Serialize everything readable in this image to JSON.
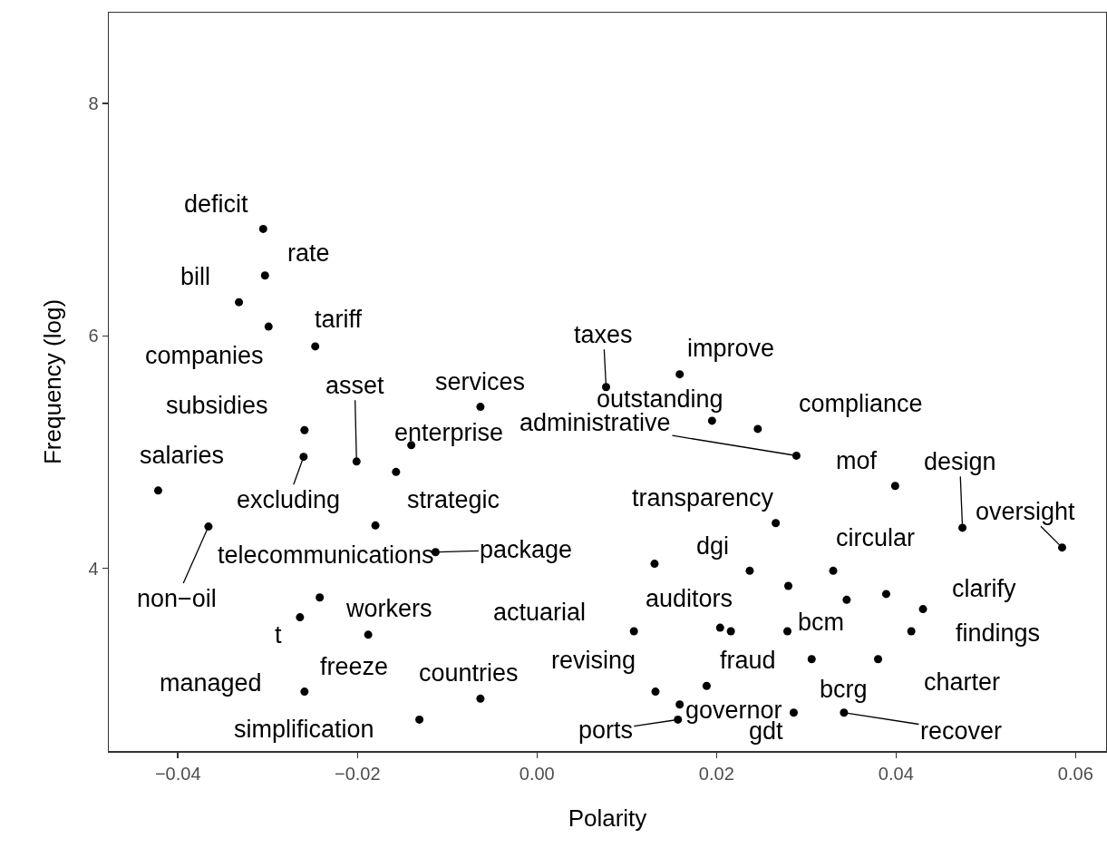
{
  "chart_data": {
    "type": "scatter",
    "xlabel": "Polarity",
    "ylabel": "Frequency (log)",
    "xlim": [
      -0.0477,
      0.0634
    ],
    "ylim": [
      2.43,
      8.78
    ],
    "xticks": [
      {
        "value": -0.04,
        "label": "−0.04"
      },
      {
        "value": -0.02,
        "label": "−0.02"
      },
      {
        "value": 0,
        "label": "0.00"
      },
      0.02,
      0.04,
      0.06
    ],
    "yticks": [
      4,
      6,
      8
    ],
    "grid": false,
    "marker": "circle",
    "series": [
      {
        "color": "#000000",
        "x": [
          -0.0305,
          -0.0303,
          -0.0332,
          -0.0299,
          -0.0247,
          -0.0063,
          -0.0259,
          -0.026,
          -0.0201,
          -0.014,
          -0.0157,
          -0.0422,
          -0.018,
          -0.0366,
          0.0077,
          0.0159,
          0.0195,
          0.0246,
          0.0289,
          0.0399,
          0.0474,
          0.0585,
          0.0266,
          -0.0113,
          -0.0242,
          -0.0264,
          -0.0188,
          -0.0259,
          -0.0063,
          -0.0131,
          0.0131,
          0.0237,
          0.033,
          0.028,
          0.0345,
          0.0389,
          0.043,
          0.0108,
          0.0204,
          0.0216,
          0.0279,
          0.0417,
          0.0306,
          0.038,
          0.0189,
          0.0132,
          0.0159,
          0.0157,
          0.0286,
          0.0342
        ],
        "values": [
          6.92,
          6.52,
          6.29,
          6.08,
          5.91,
          5.39,
          5.19,
          4.96,
          4.92,
          5.06,
          4.83,
          4.67,
          4.37,
          4.36,
          5.56,
          5.67,
          5.27,
          5.2,
          4.97,
          4.71,
          4.35,
          4.18,
          4.39,
          4.14,
          3.75,
          3.58,
          3.43,
          2.94,
          2.88,
          2.7,
          4.04,
          3.98,
          3.98,
          3.85,
          3.73,
          3.78,
          3.65,
          3.46,
          3.49,
          3.46,
          3.46,
          3.46,
          3.22,
          3.22,
          2.99,
          2.94,
          2.83,
          2.7,
          2.76,
          2.76
        ]
      }
    ],
    "annotations": [
      {
        "text": "deficit",
        "x": -0.0305,
        "y": 6.92
      },
      {
        "text": "rate",
        "x": -0.0303,
        "y": 6.52
      },
      {
        "text": "bill",
        "x": -0.0332,
        "y": 6.29
      },
      {
        "text": "companies",
        "x": -0.0299,
        "y": 6.08
      },
      {
        "text": "tariff",
        "x": -0.0247,
        "y": 5.91
      },
      {
        "text": "services",
        "x": -0.0063,
        "y": 5.39
      },
      {
        "text": "subsidies",
        "x": -0.0259,
        "y": 5.19
      },
      {
        "text": "excluding",
        "x": -0.026,
        "y": 4.96
      },
      {
        "text": "asset",
        "x": -0.0201,
        "y": 4.92
      },
      {
        "text": "enterprise",
        "x": -0.014,
        "y": 5.06
      },
      {
        "text": "strategic",
        "x": -0.0157,
        "y": 4.83
      },
      {
        "text": "salaries",
        "x": -0.0422,
        "y": 4.67
      },
      {
        "text": "telecommunications",
        "x": -0.018,
        "y": 4.37
      },
      {
        "text": "non−oil",
        "x": -0.0366,
        "y": 4.36
      },
      {
        "text": "taxes",
        "x": 0.0077,
        "y": 5.56
      },
      {
        "text": "improve",
        "x": 0.0159,
        "y": 5.67
      },
      {
        "text": "outstanding",
        "x": 0.0195,
        "y": 5.27
      },
      {
        "text": "compliance",
        "x": 0.0246,
        "y": 5.2
      },
      {
        "text": "administrative",
        "x": 0.0289,
        "y": 4.97
      },
      {
        "text": "mof",
        "x": 0.0399,
        "y": 4.71
      },
      {
        "text": "design",
        "x": 0.0474,
        "y": 4.35
      },
      {
        "text": "oversight",
        "x": 0.0585,
        "y": 4.18
      },
      {
        "text": "transparency",
        "x": 0.0266,
        "y": 4.39
      },
      {
        "text": "package",
        "x": -0.0113,
        "y": 4.14
      },
      {
        "text": "workers",
        "x": -0.0242,
        "y": 3.75
      },
      {
        "text": "t",
        "x": -0.0264,
        "y": 3.58
      },
      {
        "text": "freeze",
        "x": -0.0188,
        "y": 3.43
      },
      {
        "text": "managed",
        "x": -0.0259,
        "y": 2.94
      },
      {
        "text": "countries",
        "x": -0.0063,
        "y": 2.88
      },
      {
        "text": "simplification",
        "x": -0.0131,
        "y": 2.7
      },
      {
        "text": "dgi",
        "x": 0.0237,
        "y": 3.98
      },
      {
        "text": "circular",
        "x": 0.033,
        "y": 3.98
      },
      {
        "text": "clarify",
        "x": 0.043,
        "y": 3.65
      },
      {
        "text": "actuarial",
        "x": 0.0108,
        "y": 3.46
      },
      {
        "text": "auditors",
        "x": 0.0204,
        "y": 3.49
      },
      {
        "text": "bcm",
        "x": 0.0279,
        "y": 3.46
      },
      {
        "text": "findings",
        "x": 0.0417,
        "y": 3.46
      },
      {
        "text": "bcrg",
        "x": 0.0306,
        "y": 3.22
      },
      {
        "text": "charter",
        "x": 0.038,
        "y": 3.22
      },
      {
        "text": "fraud",
        "x": 0.0189,
        "y": 2.99
      },
      {
        "text": "revising",
        "x": 0.0132,
        "y": 2.94
      },
      {
        "text": "governor",
        "x": 0.0159,
        "y": 2.83
      },
      {
        "text": "ports",
        "x": 0.0157,
        "y": 2.7
      },
      {
        "text": "gdt",
        "x": 0.0286,
        "y": 2.76
      },
      {
        "text": "recover",
        "x": 0.0342,
        "y": 2.76
      }
    ]
  }
}
